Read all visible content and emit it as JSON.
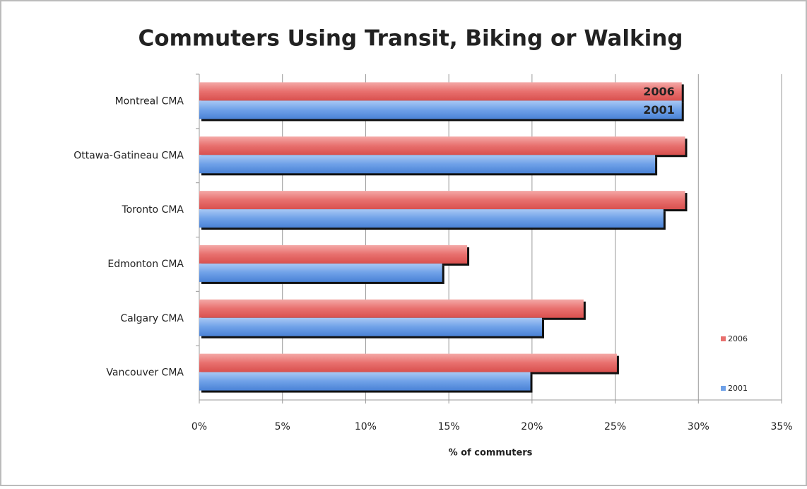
{
  "chart_data": {
    "type": "barh",
    "title": "Commuters Using Transit, Biking or Walking",
    "x_label": "% of commuters",
    "categories": [
      "Montreal CMA",
      "Ottawa-Gatineau CMA",
      "Toronto CMA",
      "Edmonton CMA",
      "Calgary CMA",
      "Vancouver CMA"
    ],
    "series": [
      {
        "name": "2006",
        "color": "#e8706e",
        "values": [
          29.0,
          29.2,
          29.2,
          16.1,
          23.1,
          25.1
        ]
      },
      {
        "name": "2001",
        "color": "#6fa1e8",
        "values": [
          29.0,
          27.4,
          27.9,
          14.6,
          20.6,
          19.9
        ]
      }
    ],
    "xlim": [
      0,
      35
    ],
    "xticks": [
      {
        "value": 0,
        "label": "0%"
      },
      {
        "value": 5,
        "label": "5%"
      },
      {
        "value": 10,
        "label": "10%"
      },
      {
        "value": 15,
        "label": "15%"
      },
      {
        "value": 20,
        "label": "20%"
      },
      {
        "value": 25,
        "label": "25%"
      },
      {
        "value": 30,
        "label": "30%"
      },
      {
        "value": 35,
        "label": "35%"
      }
    ],
    "grid": true,
    "legend": "right"
  }
}
